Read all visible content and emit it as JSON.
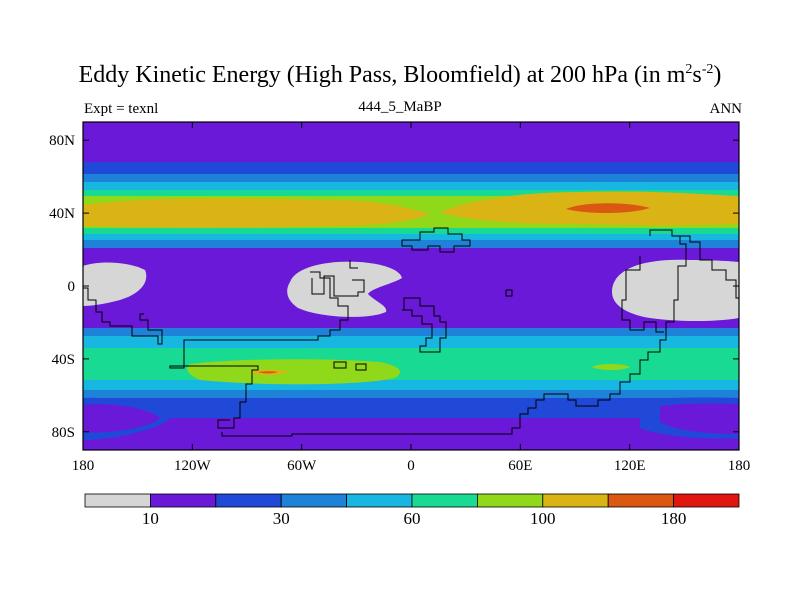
{
  "title": {
    "main": "Eddy Kinetic Energy (High Pass, Bloomfield) at 200 hPa (in m",
    "sup1": "2",
    "mid": "s",
    "sup2": "-2",
    "tail": ")"
  },
  "left_label": "Expt = texnl",
  "center_label": "444_5_MaBP",
  "right_label": "ANN",
  "map": {
    "lon_range": [
      -180,
      180
    ],
    "lat_range": [
      -90,
      90
    ],
    "x_ticks": [
      {
        "lon": -180,
        "label": "180"
      },
      {
        "lon": -120,
        "label": "120W"
      },
      {
        "lon": -60,
        "label": "60W"
      },
      {
        "lon": 0,
        "label": "0"
      },
      {
        "lon": 60,
        "label": "60E"
      },
      {
        "lon": 120,
        "label": "120E"
      },
      {
        "lon": 180,
        "label": "180"
      }
    ],
    "y_ticks": [
      {
        "lat": 80,
        "label": "80N"
      },
      {
        "lat": 40,
        "label": "40N"
      },
      {
        "lat": 0,
        "label": "0"
      },
      {
        "lat": -40,
        "label": "40S"
      },
      {
        "lat": -80,
        "label": "80S"
      }
    ]
  },
  "colorbar": {
    "colors": [
      "#d6d6d6",
      "#6a19d9",
      "#1f49d6",
      "#1e82d8",
      "#18b7e2",
      "#19da92",
      "#8fd81a",
      "#d9b414",
      "#db5812",
      "#e1170f"
    ],
    "labels": [
      {
        "index": 1,
        "label": "10"
      },
      {
        "index": 3,
        "label": "30"
      },
      {
        "index": 5,
        "label": "60"
      },
      {
        "index": 7,
        "label": "100"
      },
      {
        "index": 9,
        "label": "180"
      }
    ]
  }
}
